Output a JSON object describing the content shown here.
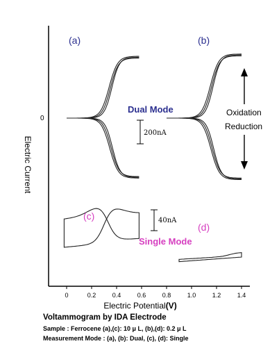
{
  "colors": {
    "label_blue": "#2b2f8f",
    "label_magenta": "#d63fc0",
    "curve": "#222222"
  },
  "chart_data": {
    "type": "line",
    "xlabel": "Electric Potential",
    "xunit": "(V)",
    "ylabel": "Electric Current",
    "y_zero_label": "0",
    "x_ticks": [
      "0",
      "0.2",
      "0.4",
      "0.6",
      "0.8",
      "1.0",
      "1.2",
      "1.4"
    ],
    "xlim": [
      -0.18,
      1.55
    ],
    "ylim": [
      -1650,
      1050
    ],
    "panels": [
      {
        "label": "(a)",
        "mode": "Dual",
        "sample": "10 μL",
        "e_half": 0.35,
        "i_ox_lim": 800,
        "i_red_lim": -780,
        "x_range": [
          0.0,
          0.58
        ]
      },
      {
        "label": "(b)",
        "mode": "Dual",
        "sample": "0.2 μL",
        "e_half": 1.16,
        "i_ox_lim": 830,
        "i_red_lim": -800,
        "x_range": [
          0.8,
          1.4
        ]
      },
      {
        "label": "(c)",
        "mode": "Single",
        "sample": "10 μL",
        "x_range": [
          -0.02,
          0.58
        ],
        "peak_ox_potential": 0.36,
        "peak_red_potential": 0.27
      },
      {
        "label": "(d)",
        "mode": "Single",
        "sample": "0.2 μL",
        "x_range": [
          0.9,
          1.4
        ]
      }
    ],
    "annotations": {
      "dual_mode": "Dual Mode",
      "single_mode": "Single Mode",
      "scale_dual": "200nA",
      "scale_single": "40nA",
      "oxidation": "Oxidation",
      "reduction": "Reduction"
    }
  },
  "caption": {
    "title": "Voltammogram by IDA Electrode",
    "sample": "Sample : Ferrocene (a),(c): 10 μ L,  (b),(d): 0.2 μ L",
    "mode": "Measurement Mode : (a), (b): Dual,  (c), (d): Single"
  }
}
